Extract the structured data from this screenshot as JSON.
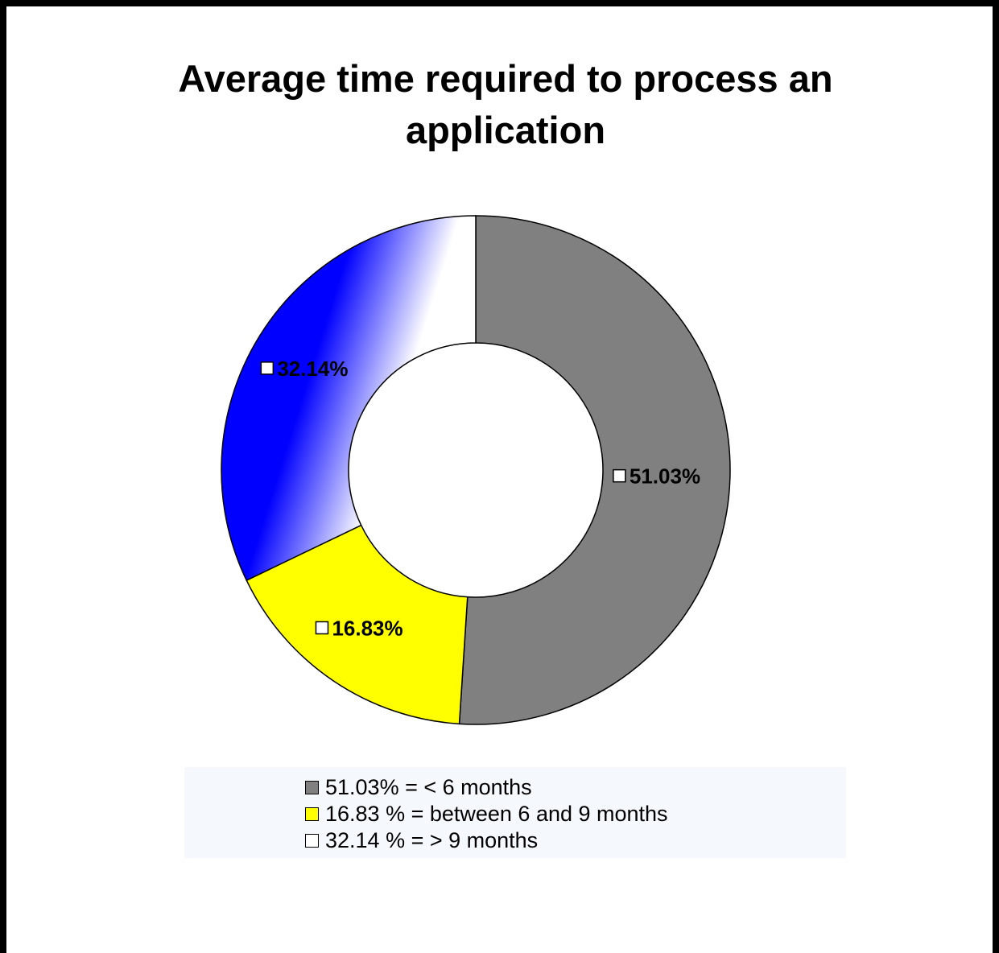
{
  "chart_data": {
    "type": "pie",
    "title": "Average time required to process an application",
    "slices": [
      {
        "label": "51.03%",
        "value": 51.03,
        "color": "#808080"
      },
      {
        "label": "16.83%",
        "value": 16.83,
        "color": "#ffff00"
      },
      {
        "label": "32.14%",
        "value": 32.14,
        "color": "#0000ff"
      }
    ],
    "legend": {
      "placement": "bottom",
      "entries": [
        {
          "text": "51.03% = < 6 months",
          "color": "#808080"
        },
        {
          "text": "16.83 % = between 6 and 9 months",
          "color": "#ffff00"
        },
        {
          "text": "32.14 % = > 9 months",
          "color": "#ffffff"
        }
      ]
    }
  }
}
